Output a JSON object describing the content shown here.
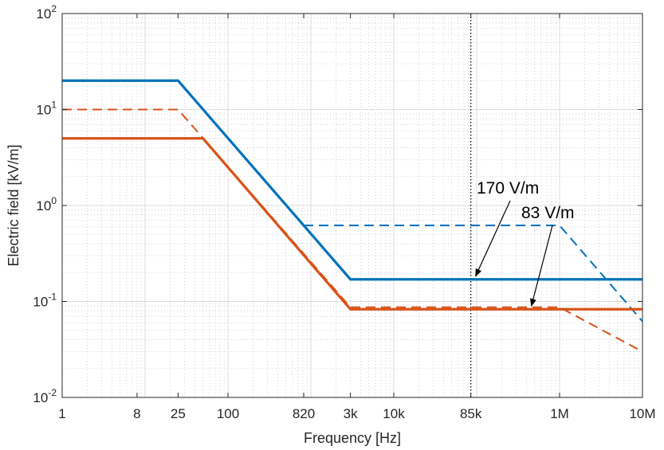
{
  "chart_data": {
    "type": "line",
    "xlabel": "Frequency [Hz]",
    "ylabel": "Electric field [kV/m]",
    "xscale": "log",
    "yscale": "log",
    "xlim": [
      1,
      10000000
    ],
    "ylim": [
      0.01,
      100
    ],
    "grid": true,
    "minor_grid": true,
    "x_ticks": [
      {
        "value": 1,
        "label": "1"
      },
      {
        "value": 8,
        "label": "8"
      },
      {
        "value": 25,
        "label": "25"
      },
      {
        "value": 100,
        "label": "100"
      },
      {
        "value": 820,
        "label": "820"
      },
      {
        "value": 3000,
        "label": "3k"
      },
      {
        "value": 10000,
        "label": "10k"
      },
      {
        "value": 85000,
        "label": "85k"
      },
      {
        "value": 1000000,
        "label": "1M"
      },
      {
        "value": 10000000,
        "label": "10M"
      }
    ],
    "y_ticks": [
      {
        "value": 0.01,
        "base": "10",
        "exp": "-2"
      },
      {
        "value": 0.1,
        "base": "10",
        "exp": "-1"
      },
      {
        "value": 1,
        "base": "10",
        "exp": "0"
      },
      {
        "value": 10,
        "base": "10",
        "exp": "1"
      },
      {
        "value": 100,
        "base": "10",
        "exp": "2"
      }
    ],
    "vline": {
      "x": 85000
    },
    "series": [
      {
        "color": "#0072BD",
        "style": "solid",
        "x": [
          1,
          25,
          3000,
          10000000
        ],
        "y": [
          20,
          20,
          0.17,
          0.17
        ]
      },
      {
        "color": "#0072BD",
        "style": "dashed",
        "x": [
          820,
          1000000,
          10000000
        ],
        "y": [
          0.62,
          0.62,
          0.062
        ]
      },
      {
        "color": "#D95319",
        "style": "solid",
        "x": [
          1,
          50,
          3000,
          10000000
        ],
        "y": [
          5,
          5,
          0.083,
          0.083
        ]
      },
      {
        "color": "#D95319",
        "style": "dashed",
        "x": [
          1,
          25,
          3000,
          1000000,
          10000000
        ],
        "y": [
          10,
          10,
          0.087,
          0.087,
          0.03
        ]
      }
    ],
    "annotations": [
      {
        "text": "170 V/m",
        "point": [
          85000,
          0.17
        ]
      },
      {
        "text": "83 V/m",
        "point": [
          400000,
          0.083
        ]
      }
    ]
  }
}
